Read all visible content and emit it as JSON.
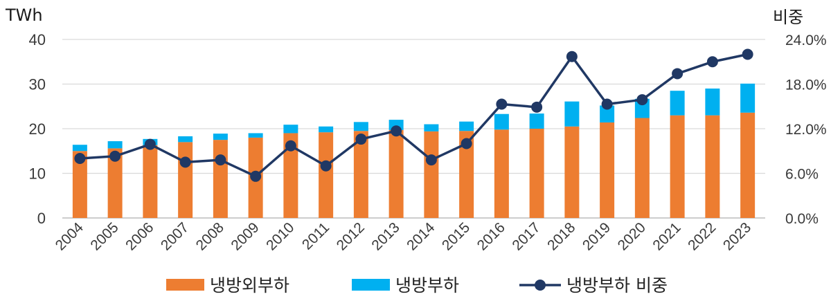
{
  "chart_data": {
    "type": "bar",
    "categories": [
      "2004",
      "2005",
      "2006",
      "2007",
      "2008",
      "2009",
      "2010",
      "2011",
      "2012",
      "2013",
      "2014",
      "2015",
      "2016",
      "2017",
      "2018",
      "2019",
      "2020",
      "2021",
      "2022",
      "2023"
    ],
    "series": [
      {
        "name": "냉방외부하",
        "kind": "bar",
        "axis": "left",
        "color": "#ED7D31",
        "values": [
          15.0,
          15.6,
          16.3,
          17.0,
          17.5,
          18.0,
          19.0,
          19.2,
          19.5,
          19.7,
          19.4,
          19.5,
          19.8,
          20.0,
          20.5,
          21.4,
          22.4,
          23.0,
          23.0,
          23.6
        ]
      },
      {
        "name": "냉방부하",
        "kind": "bar",
        "axis": "left",
        "color": "#00B0F0",
        "values": [
          1.4,
          1.6,
          1.4,
          1.3,
          1.4,
          1.0,
          1.9,
          1.3,
          2.0,
          2.3,
          1.6,
          2.1,
          3.5,
          3.4,
          5.6,
          3.8,
          4.3,
          5.5,
          6.0,
          6.5
        ]
      },
      {
        "name": "냉방부하 비중",
        "kind": "line",
        "axis": "right",
        "color": "#203864",
        "values": [
          8.0,
          8.3,
          9.9,
          7.5,
          7.8,
          5.6,
          9.7,
          7.0,
          10.6,
          11.7,
          7.8,
          10.0,
          15.3,
          14.9,
          21.7,
          15.3,
          15.9,
          19.4,
          21.0,
          22.0
        ]
      }
    ],
    "left_axis": {
      "unit": "TWh",
      "ylim": [
        0,
        40
      ],
      "ticks": [
        0,
        10,
        20,
        30,
        40
      ],
      "tick_labels": [
        "0",
        "10",
        "20",
        "30",
        "40"
      ]
    },
    "right_axis": {
      "unit": "비중",
      "ylim": [
        0,
        24
      ],
      "ticks": [
        0,
        6,
        12,
        18,
        24
      ],
      "tick_labels": [
        "0.0%",
        "6.0%",
        "12.0%",
        "18.0%",
        "24.0%"
      ]
    },
    "grid": true,
    "legend_position": "bottom"
  }
}
